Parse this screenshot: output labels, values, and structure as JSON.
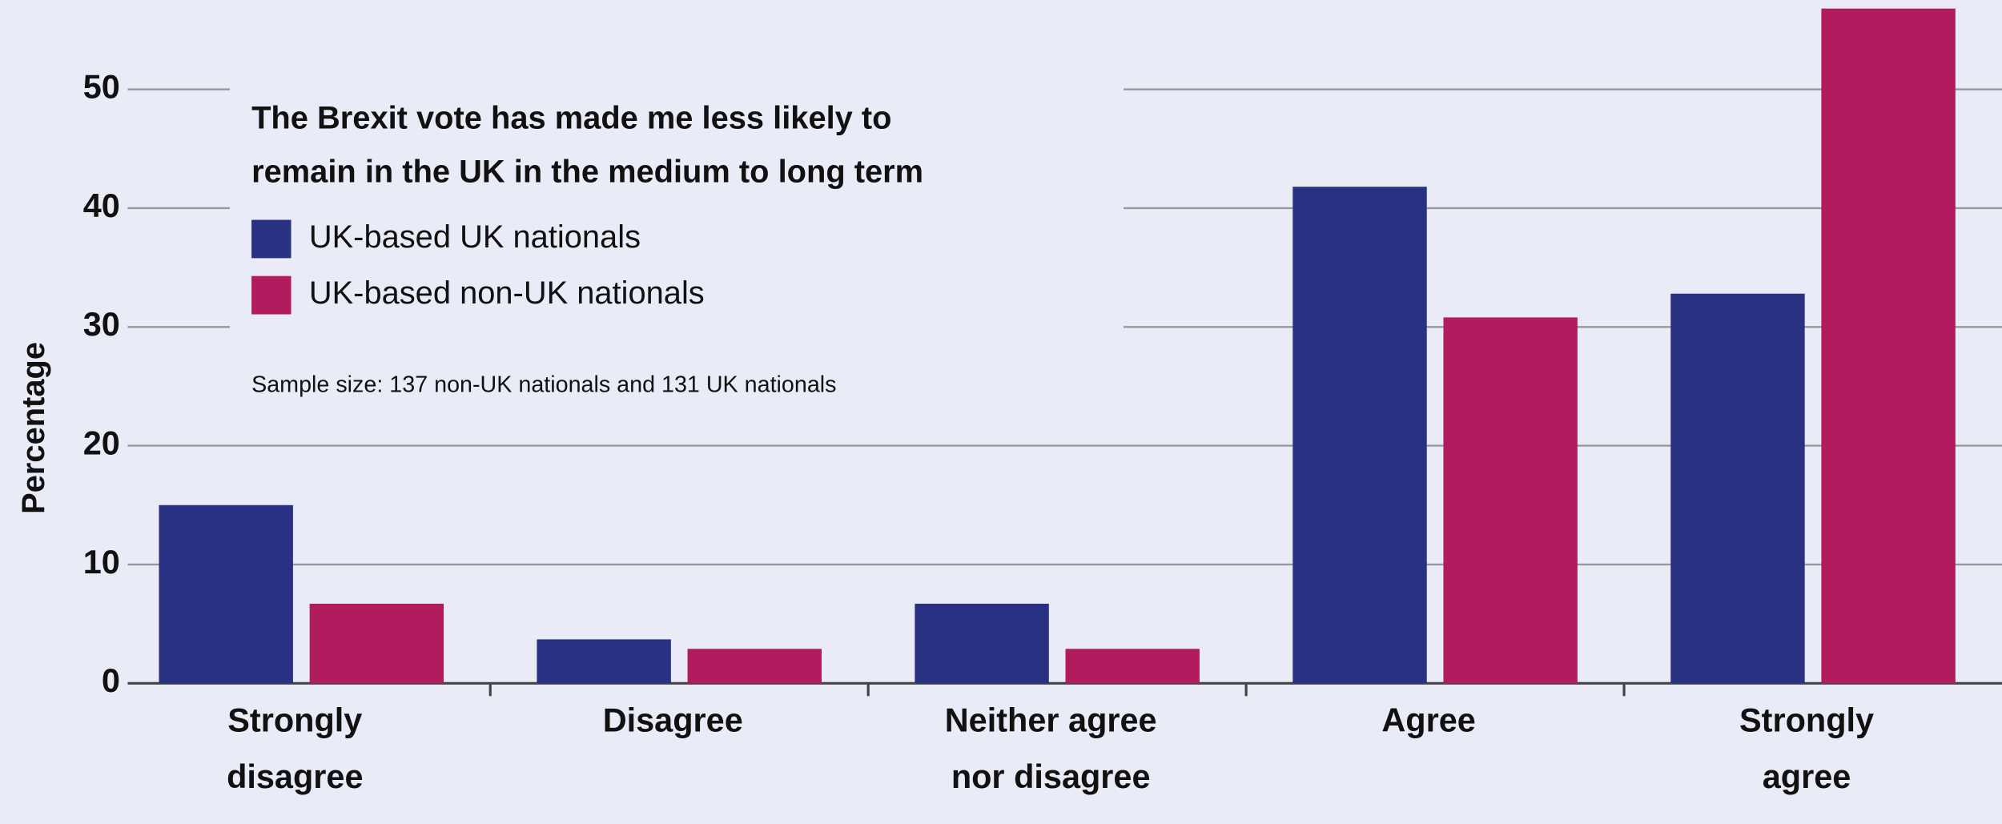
{
  "chart_data": {
    "type": "bar",
    "title": [
      "The Brexit vote has made me less likely to",
      "remain in the UK in the medium to long term"
    ],
    "annotation": "Sample size: 137 non-UK nationals and 131 UK nationals",
    "y_label": "Percentage",
    "categories": [
      [
        "Strongly",
        "disagree"
      ],
      [
        "Disagree"
      ],
      [
        "Neither agree",
        "nor disagree"
      ],
      [
        "Agree"
      ],
      [
        "Strongly",
        "agree"
      ]
    ],
    "series": [
      {
        "name": "UK-based UK nationals",
        "color": "#283182",
        "values": [
          15,
          3.7,
          6.7,
          41.8,
          32.8
        ]
      },
      {
        "name": "UK-based non-UK nationals",
        "color": "#b01c5e",
        "values": [
          6.7,
          2.9,
          2.9,
          30.8,
          56.8
        ]
      }
    ],
    "ylim": [
      0,
      57.5
    ],
    "yticks": [
      0,
      10,
      20,
      30,
      40,
      50
    ],
    "grid": true
  }
}
